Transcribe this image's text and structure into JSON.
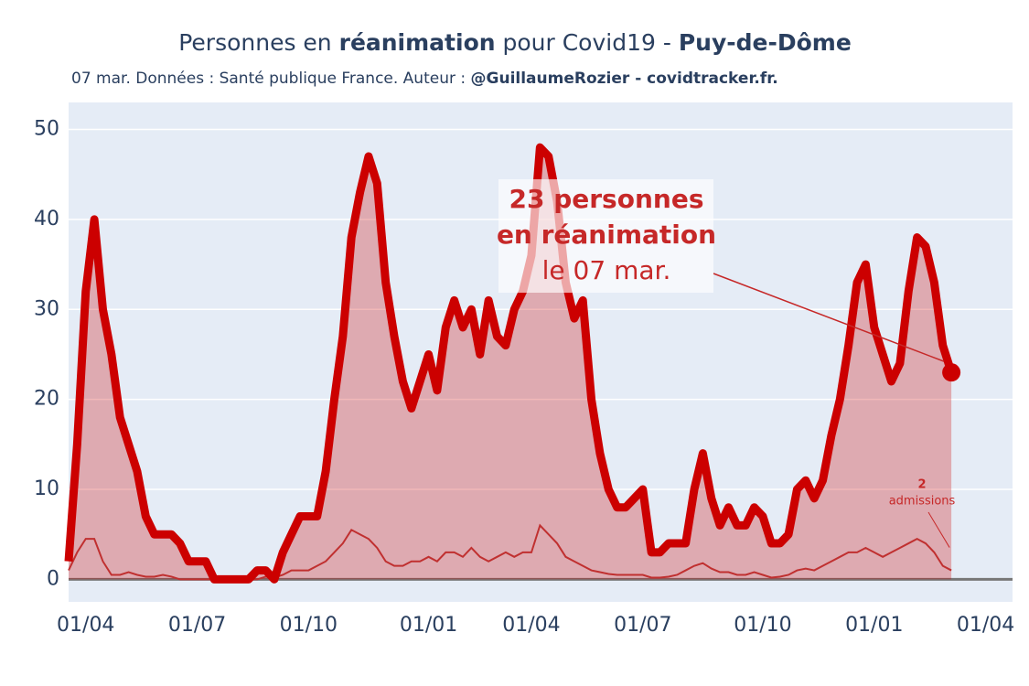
{
  "chart_data": {
    "type": "line",
    "title_parts": [
      "Personnes en ",
      "réanimation",
      " pour Covid19 - ",
      "Puy-de-Dôme"
    ],
    "subtitle_parts": [
      "07 mar. Données : Santé publique France. Auteur : ",
      "@GuillaumeRozier - covidtracker.fr."
    ],
    "categories": [
      null,
      null,
      "01/04",
      null,
      null,
      null,
      null,
      null,
      null,
      null,
      null,
      null,
      null,
      null,
      null,
      "01/07",
      null,
      null,
      null,
      null,
      null,
      null,
      null,
      null,
      null,
      null,
      null,
      null,
      "01/10",
      null,
      null,
      null,
      null,
      null,
      null,
      null,
      null,
      null,
      null,
      null,
      null,
      null,
      "01/01",
      null,
      null,
      null,
      null,
      null,
      null,
      null,
      null,
      null,
      null,
      null,
      "01/04",
      null,
      null,
      null,
      null,
      null,
      null,
      null,
      null,
      null,
      null,
      null,
      null,
      "01/07",
      null,
      null,
      null,
      null,
      null,
      null,
      null,
      null,
      null,
      null,
      null,
      null,
      null,
      "01/10",
      null,
      null,
      null,
      null,
      null,
      null,
      null,
      null,
      null,
      null,
      null,
      null,
      "01/01",
      null,
      null,
      null,
      null,
      null,
      null,
      null,
      null,
      null,
      null,
      null,
      null,
      "01/04",
      null
    ],
    "series": [
      {
        "name": "réanimation",
        "color": "#cc0000",
        "values": [
          2,
          15,
          32,
          40,
          30,
          25,
          18,
          15,
          12,
          7,
          5,
          5,
          5,
          4,
          2,
          2,
          2,
          0,
          0,
          0,
          0,
          0,
          1,
          1,
          0,
          3,
          5,
          7,
          7,
          7,
          12,
          20,
          27,
          38,
          43,
          47,
          44,
          33,
          27,
          22,
          19,
          22,
          25,
          21,
          28,
          31,
          28,
          30,
          25,
          31,
          27,
          26,
          30,
          32,
          36,
          48,
          47,
          42,
          33,
          29,
          31,
          20,
          14,
          10,
          8,
          8,
          9,
          10,
          3,
          3,
          4,
          4,
          4,
          10,
          14,
          9,
          6,
          8,
          6,
          6,
          8,
          7,
          4,
          4,
          5,
          10,
          11,
          9,
          11,
          16,
          20,
          26,
          33,
          35,
          28,
          25,
          22,
          24,
          32,
          38,
          37,
          33,
          26,
          23,
          null,
          null,
          null,
          null,
          null
        ]
      },
      {
        "name": "admissions",
        "color": "#c03030",
        "values": [
          1,
          3,
          4.5,
          4.5,
          2,
          0.5,
          0.5,
          0.8,
          0.5,
          0.3,
          0.3,
          0.5,
          0.3,
          0,
          0,
          0,
          0,
          0,
          0,
          0,
          0,
          0,
          0,
          0.3,
          0.2,
          0.5,
          1,
          1,
          1,
          1.5,
          2,
          3,
          4,
          5.5,
          5,
          4.5,
          3.5,
          2,
          1.5,
          1.5,
          2,
          2,
          2.5,
          2,
          3,
          3,
          2.5,
          3.5,
          2.5,
          2,
          2.5,
          3,
          2.5,
          3,
          3,
          6,
          5,
          4,
          2.5,
          2,
          1.5,
          1,
          0.8,
          0.6,
          0.5,
          0.5,
          0.5,
          0.5,
          0.2,
          0.2,
          0.3,
          0.5,
          1,
          1.5,
          1.8,
          1.2,
          0.8,
          0.8,
          0.5,
          0.5,
          0.8,
          0.5,
          0.2,
          0.3,
          0.5,
          1,
          1.2,
          1,
          1.5,
          2,
          2.5,
          3,
          3,
          3.5,
          3,
          2.5,
          3,
          3.5,
          4,
          4.5,
          4,
          3,
          1.5,
          1,
          null,
          null,
          null,
          null,
          null
        ]
      }
    ],
    "annotations": [
      {
        "lines": [
          "23 personnes",
          "en réanimation",
          "le 07 mar."
        ]
      },
      {
        "lines": [
          "2",
          "admissions"
        ]
      }
    ],
    "ylim": [
      -2.5,
      53
    ],
    "yticks": [
      0,
      10,
      20,
      30,
      40,
      50
    ],
    "grid": true
  }
}
